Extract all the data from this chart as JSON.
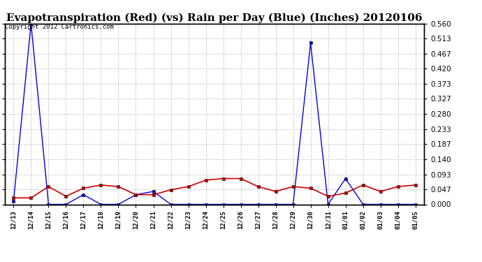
{
  "title": "Evapotranspiration (Red) (vs) Rain per Day (Blue) (Inches) 20120106",
  "copyright": "Copyright 2012 Cartronics.com",
  "x_labels": [
    "12/13",
    "12/14",
    "12/15",
    "12/16",
    "12/17",
    "12/18",
    "12/19",
    "12/20",
    "12/21",
    "12/22",
    "12/23",
    "12/24",
    "12/25",
    "12/26",
    "12/27",
    "12/28",
    "12/29",
    "12/30",
    "12/31",
    "01/01",
    "01/02",
    "01/03",
    "01/04",
    "01/05"
  ],
  "rain_blue": [
    0.01,
    0.56,
    0.0,
    0.0,
    0.03,
    0.0,
    0.0,
    0.03,
    0.04,
    0.0,
    0.0,
    0.0,
    0.0,
    0.0,
    0.0,
    0.0,
    0.0,
    0.5,
    0.0,
    0.08,
    0.0,
    0.0,
    0.0,
    0.0
  ],
  "evap_red": [
    0.02,
    0.02,
    0.055,
    0.025,
    0.05,
    0.06,
    0.055,
    0.03,
    0.03,
    0.045,
    0.055,
    0.075,
    0.08,
    0.08,
    0.055,
    0.04,
    0.055,
    0.05,
    0.025,
    0.035,
    0.06,
    0.04,
    0.055,
    0.06
  ],
  "ylim": [
    0.0,
    0.56
  ],
  "yticks": [
    0.0,
    0.047,
    0.093,
    0.14,
    0.187,
    0.233,
    0.28,
    0.327,
    0.373,
    0.42,
    0.467,
    0.513,
    0.56
  ],
  "bg_color": "#ffffff",
  "grid_color": "#c8c8c8",
  "blue_color": "#0000dd",
  "red_color": "#cc0000",
  "title_fontsize": 11,
  "copyright_fontsize": 6.5,
  "tick_fontsize": 7.5,
  "xtick_fontsize": 6.5
}
